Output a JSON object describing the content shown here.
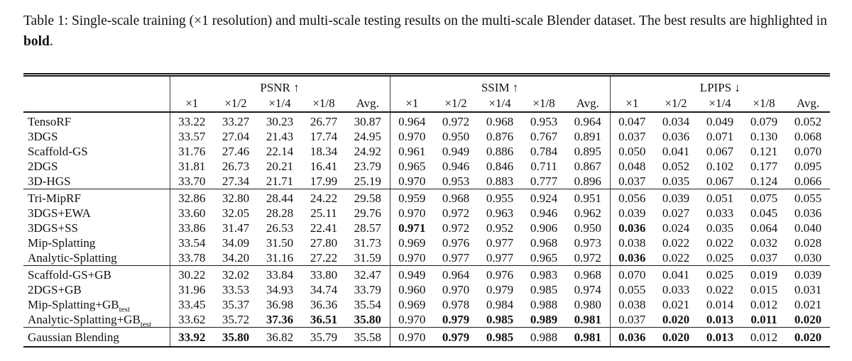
{
  "colors": {
    "background": "#ffffff",
    "text": "#111111",
    "rule": "#1a1a1a"
  },
  "caption": {
    "text_before_bold": "Table 1: Single-scale training (×1 resolution) and multi-scale testing results on the multi-scale Blender dataset. The best results are highlighted in ",
    "bold_word": "bold",
    "text_after_bold": "."
  },
  "table": {
    "metrics": [
      "PSNR ↑",
      "SSIM ↑",
      "LPIPS ↓"
    ],
    "scales": [
      "×1",
      "×1/2",
      "×1/4",
      "×1/8",
      "Avg."
    ],
    "groups": [
      {
        "rows": [
          {
            "method": "TensoRF",
            "psnr": [
              "33.22",
              "33.27",
              "30.23",
              "26.77",
              "30.87"
            ],
            "psnr_bold": [
              0,
              0,
              0,
              0,
              0
            ],
            "ssim": [
              "0.964",
              "0.972",
              "0.968",
              "0.953",
              "0.964"
            ],
            "ssim_bold": [
              0,
              0,
              0,
              0,
              0
            ],
            "lpips": [
              "0.047",
              "0.034",
              "0.049",
              "0.079",
              "0.052"
            ],
            "lpips_bold": [
              0,
              0,
              0,
              0,
              0
            ]
          },
          {
            "method": "3DGS",
            "psnr": [
              "33.57",
              "27.04",
              "21.43",
              "17.74",
              "24.95"
            ],
            "psnr_bold": [
              0,
              0,
              0,
              0,
              0
            ],
            "ssim": [
              "0.970",
              "0.950",
              "0.876",
              "0.767",
              "0.891"
            ],
            "ssim_bold": [
              0,
              0,
              0,
              0,
              0
            ],
            "lpips": [
              "0.037",
              "0.036",
              "0.071",
              "0.130",
              "0.068"
            ],
            "lpips_bold": [
              0,
              0,
              0,
              0,
              0
            ]
          },
          {
            "method": "Scaffold-GS",
            "psnr": [
              "31.76",
              "27.46",
              "22.14",
              "18.34",
              "24.92"
            ],
            "psnr_bold": [
              0,
              0,
              0,
              0,
              0
            ],
            "ssim": [
              "0.961",
              "0.949",
              "0.886",
              "0.784",
              "0.895"
            ],
            "ssim_bold": [
              0,
              0,
              0,
              0,
              0
            ],
            "lpips": [
              "0.050",
              "0.041",
              "0.067",
              "0.121",
              "0.070"
            ],
            "lpips_bold": [
              0,
              0,
              0,
              0,
              0
            ]
          },
          {
            "method": "2DGS",
            "psnr": [
              "31.81",
              "26.73",
              "20.21",
              "16.41",
              "23.79"
            ],
            "psnr_bold": [
              0,
              0,
              0,
              0,
              0
            ],
            "ssim": [
              "0.965",
              "0.946",
              "0.846",
              "0.711",
              "0.867"
            ],
            "ssim_bold": [
              0,
              0,
              0,
              0,
              0
            ],
            "lpips": [
              "0.048",
              "0.052",
              "0.102",
              "0.177",
              "0.095"
            ],
            "lpips_bold": [
              0,
              0,
              0,
              0,
              0
            ]
          },
          {
            "method": "3D-HGS",
            "psnr": [
              "33.70",
              "27.34",
              "21.71",
              "17.99",
              "25.19"
            ],
            "psnr_bold": [
              0,
              0,
              0,
              0,
              0
            ],
            "ssim": [
              "0.970",
              "0.953",
              "0.883",
              "0.777",
              "0.896"
            ],
            "ssim_bold": [
              0,
              0,
              0,
              0,
              0
            ],
            "lpips": [
              "0.037",
              "0.035",
              "0.067",
              "0.124",
              "0.066"
            ],
            "lpips_bold": [
              0,
              0,
              0,
              0,
              0
            ]
          }
        ]
      },
      {
        "rows": [
          {
            "method": "Tri-MipRF",
            "psnr": [
              "32.86",
              "32.80",
              "28.44",
              "24.22",
              "29.58"
            ],
            "psnr_bold": [
              0,
              0,
              0,
              0,
              0
            ],
            "ssim": [
              "0.959",
              "0.968",
              "0.955",
              "0.924",
              "0.951"
            ],
            "ssim_bold": [
              0,
              0,
              0,
              0,
              0
            ],
            "lpips": [
              "0.056",
              "0.039",
              "0.051",
              "0.075",
              "0.055"
            ],
            "lpips_bold": [
              0,
              0,
              0,
              0,
              0
            ]
          },
          {
            "method": "3DGS+EWA",
            "psnr": [
              "33.60",
              "32.05",
              "28.28",
              "25.11",
              "29.76"
            ],
            "psnr_bold": [
              0,
              0,
              0,
              0,
              0
            ],
            "ssim": [
              "0.970",
              "0.972",
              "0.963",
              "0.946",
              "0.962"
            ],
            "ssim_bold": [
              0,
              0,
              0,
              0,
              0
            ],
            "lpips": [
              "0.039",
              "0.027",
              "0.033",
              "0.045",
              "0.036"
            ],
            "lpips_bold": [
              0,
              0,
              0,
              0,
              0
            ]
          },
          {
            "method": "3DGS+SS",
            "psnr": [
              "33.86",
              "31.47",
              "26.53",
              "22.41",
              "28.57"
            ],
            "psnr_bold": [
              0,
              0,
              0,
              0,
              0
            ],
            "ssim": [
              "0.971",
              "0.972",
              "0.952",
              "0.906",
              "0.950"
            ],
            "ssim_bold": [
              1,
              0,
              0,
              0,
              0
            ],
            "lpips": [
              "0.036",
              "0.024",
              "0.035",
              "0.064",
              "0.040"
            ],
            "lpips_bold": [
              1,
              0,
              0,
              0,
              0
            ]
          },
          {
            "method": "Mip-Splatting",
            "psnr": [
              "33.54",
              "34.09",
              "31.50",
              "27.80",
              "31.73"
            ],
            "psnr_bold": [
              0,
              0,
              0,
              0,
              0
            ],
            "ssim": [
              "0.969",
              "0.976",
              "0.977",
              "0.968",
              "0.973"
            ],
            "ssim_bold": [
              0,
              0,
              0,
              0,
              0
            ],
            "lpips": [
              "0.038",
              "0.022",
              "0.022",
              "0.032",
              "0.028"
            ],
            "lpips_bold": [
              0,
              0,
              0,
              0,
              0
            ]
          },
          {
            "method": "Analytic-Splatting",
            "psnr": [
              "33.78",
              "34.20",
              "31.16",
              "27.22",
              "31.59"
            ],
            "psnr_bold": [
              0,
              0,
              0,
              0,
              0
            ],
            "ssim": [
              "0.970",
              "0.977",
              "0.977",
              "0.965",
              "0.972"
            ],
            "ssim_bold": [
              0,
              0,
              0,
              0,
              0
            ],
            "lpips": [
              "0.036",
              "0.022",
              "0.025",
              "0.037",
              "0.030"
            ],
            "lpips_bold": [
              1,
              0,
              0,
              0,
              0
            ]
          }
        ]
      },
      {
        "rows": [
          {
            "method": "Scaffold-GS+GB",
            "psnr": [
              "30.22",
              "32.02",
              "33.84",
              "33.80",
              "32.47"
            ],
            "psnr_bold": [
              0,
              0,
              0,
              0,
              0
            ],
            "ssim": [
              "0.949",
              "0.964",
              "0.976",
              "0.983",
              "0.968"
            ],
            "ssim_bold": [
              0,
              0,
              0,
              0,
              0
            ],
            "lpips": [
              "0.070",
              "0.041",
              "0.025",
              "0.019",
              "0.039"
            ],
            "lpips_bold": [
              0,
              0,
              0,
              0,
              0
            ]
          },
          {
            "method": "2DGS+GB",
            "psnr": [
              "31.96",
              "33.53",
              "34.93",
              "34.74",
              "33.79"
            ],
            "psnr_bold": [
              0,
              0,
              0,
              0,
              0
            ],
            "ssim": [
              "0.960",
              "0.970",
              "0.979",
              "0.985",
              "0.974"
            ],
            "ssim_bold": [
              0,
              0,
              0,
              0,
              0
            ],
            "lpips": [
              "0.055",
              "0.033",
              "0.022",
              "0.015",
              "0.031"
            ],
            "lpips_bold": [
              0,
              0,
              0,
              0,
              0
            ]
          },
          {
            "method": "Mip-Splatting+GB",
            "method_sub": "test",
            "psnr": [
              "33.45",
              "35.37",
              "36.98",
              "36.36",
              "35.54"
            ],
            "psnr_bold": [
              0,
              0,
              0,
              0,
              0
            ],
            "ssim": [
              "0.969",
              "0.978",
              "0.984",
              "0.988",
              "0.980"
            ],
            "ssim_bold": [
              0,
              0,
              0,
              0,
              0
            ],
            "lpips": [
              "0.038",
              "0.021",
              "0.014",
              "0.012",
              "0.021"
            ],
            "lpips_bold": [
              0,
              0,
              0,
              0,
              0
            ]
          },
          {
            "method": "Analytic-Splatting+GB",
            "method_sub": "test",
            "psnr": [
              "33.62",
              "35.72",
              "37.36",
              "36.51",
              "35.80"
            ],
            "psnr_bold": [
              0,
              0,
              1,
              1,
              1
            ],
            "ssim": [
              "0.970",
              "0.979",
              "0.985",
              "0.989",
              "0.981"
            ],
            "ssim_bold": [
              0,
              1,
              1,
              1,
              1
            ],
            "lpips": [
              "0.037",
              "0.020",
              "0.013",
              "0.011",
              "0.020"
            ],
            "lpips_bold": [
              0,
              1,
              1,
              1,
              1
            ]
          }
        ]
      },
      {
        "rows": [
          {
            "method": "Gaussian Blending",
            "psnr": [
              "33.92",
              "35.80",
              "36.82",
              "35.79",
              "35.58"
            ],
            "psnr_bold": [
              1,
              1,
              0,
              0,
              0
            ],
            "ssim": [
              "0.970",
              "0.979",
              "0.985",
              "0.988",
              "0.981"
            ],
            "ssim_bold": [
              0,
              1,
              1,
              0,
              1
            ],
            "lpips": [
              "0.036",
              "0.020",
              "0.013",
              "0.012",
              "0.020"
            ],
            "lpips_bold": [
              1,
              1,
              1,
              0,
              1
            ]
          }
        ]
      }
    ]
  }
}
